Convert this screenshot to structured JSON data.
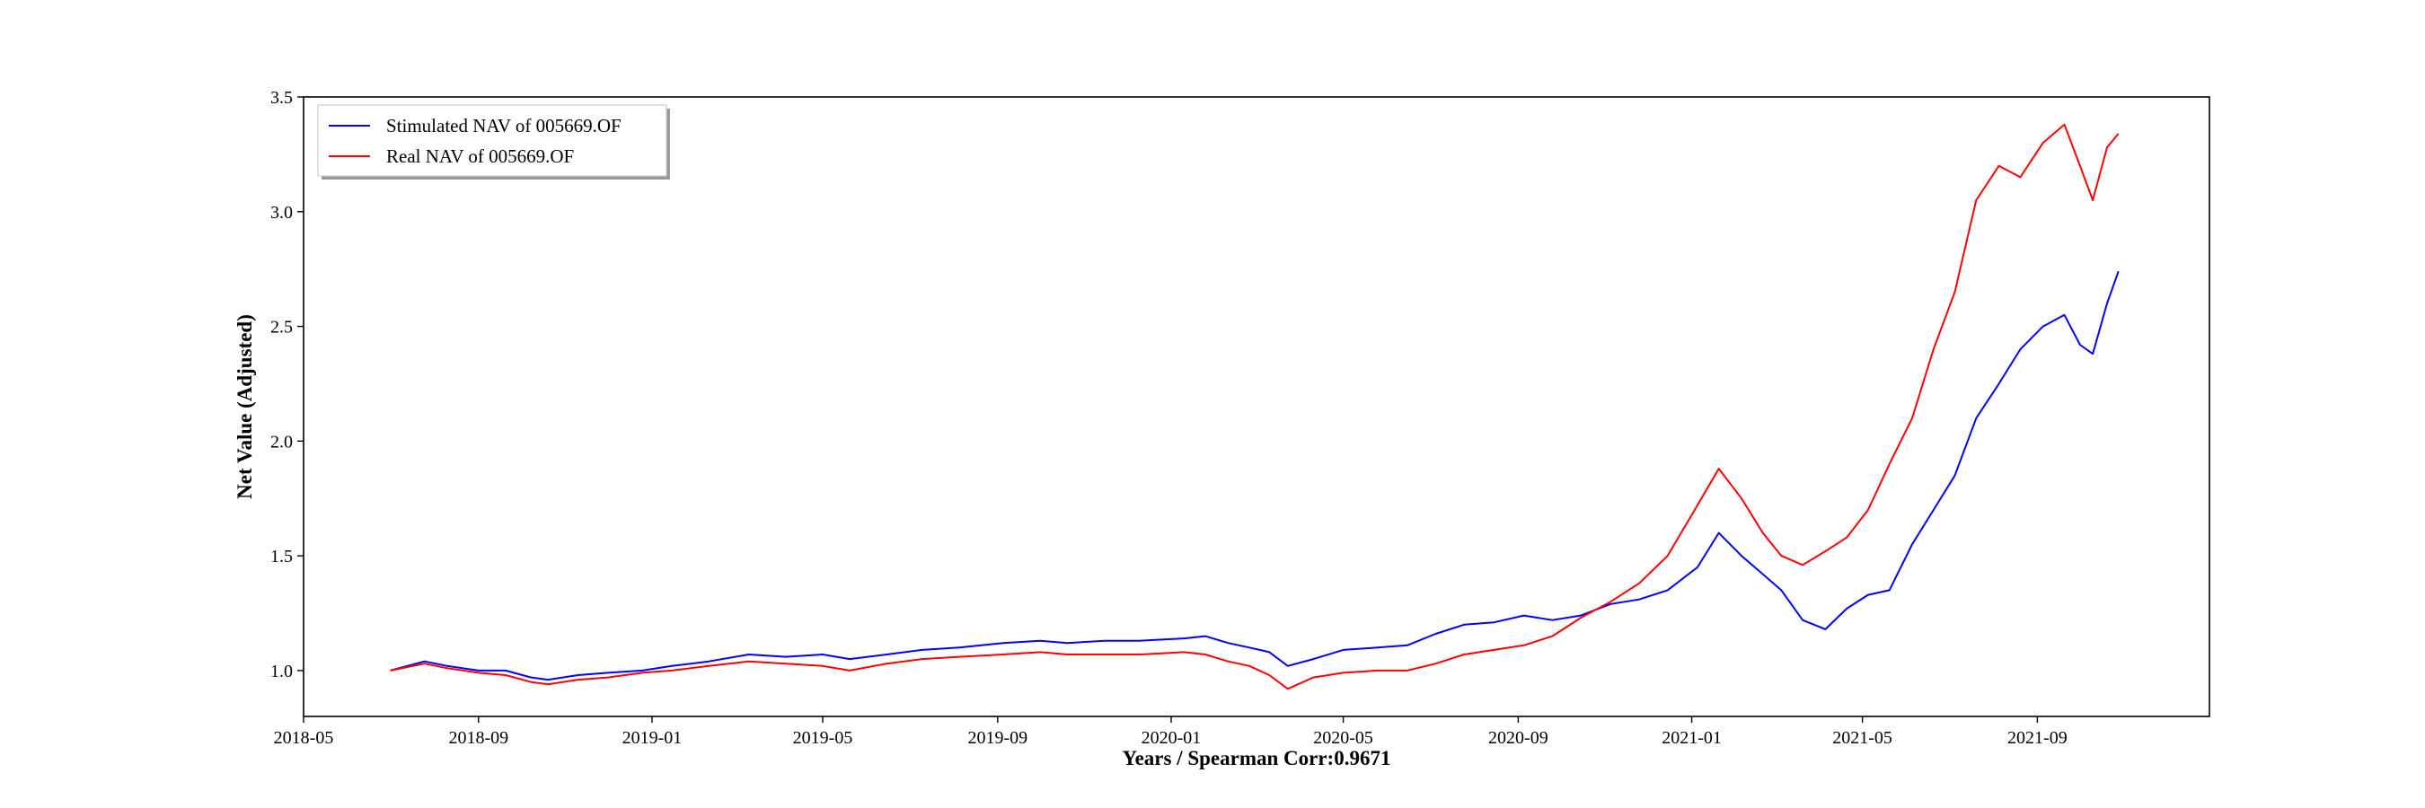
{
  "chart_data": {
    "type": "line",
    "title": "",
    "xlabel": "Years / Spearman Corr:0.9671",
    "ylabel": "Net Value (Adjusted)",
    "x_type": "date",
    "xlim": [
      "2018-05-01",
      "2021-12-31"
    ],
    "ylim": [
      0.8,
      3.5
    ],
    "x_ticks": [
      "2018-05",
      "2018-09",
      "2019-01",
      "2019-05",
      "2019-09",
      "2020-01",
      "2020-05",
      "2020-09",
      "2021-01",
      "2021-05",
      "2021-09"
    ],
    "y_ticks": [
      "1.0",
      "1.5",
      "2.0",
      "2.5",
      "3.0",
      "3.5"
    ],
    "grid": false,
    "legend_position": "top-left",
    "series": [
      {
        "name": "Stimulated NAV of 005669.OF",
        "color": "#0000ff",
        "x": [
          "2018-07-01",
          "2018-07-25",
          "2018-08-10",
          "2018-09-01",
          "2018-09-20",
          "2018-10-08",
          "2018-10-20",
          "2018-11-10",
          "2018-12-01",
          "2018-12-25",
          "2019-01-15",
          "2019-02-10",
          "2019-03-10",
          "2019-04-05",
          "2019-05-01",
          "2019-05-20",
          "2019-06-15",
          "2019-07-10",
          "2019-08-05",
          "2019-09-05",
          "2019-10-01",
          "2019-10-20",
          "2019-11-15",
          "2019-12-10",
          "2020-01-10",
          "2020-01-25",
          "2020-02-10",
          "2020-02-25",
          "2020-03-10",
          "2020-03-23",
          "2020-04-10",
          "2020-05-01",
          "2020-05-25",
          "2020-06-15",
          "2020-07-05",
          "2020-07-25",
          "2020-08-15",
          "2020-09-05",
          "2020-09-25",
          "2020-10-15",
          "2020-11-05",
          "2020-11-25",
          "2020-12-15",
          "2021-01-05",
          "2021-01-20",
          "2021-02-05",
          "2021-02-20",
          "2021-03-05",
          "2021-03-20",
          "2021-04-05",
          "2021-04-20",
          "2021-05-05",
          "2021-05-20",
          "2021-06-05",
          "2021-06-20",
          "2021-07-05",
          "2021-07-20",
          "2021-08-05",
          "2021-08-20",
          "2021-09-05",
          "2021-09-20",
          "2021-10-01",
          "2021-10-10",
          "2021-10-20",
          "2021-10-28"
        ],
        "values": [
          1.0,
          1.04,
          1.02,
          1.0,
          1.0,
          0.97,
          0.96,
          0.98,
          0.99,
          1.0,
          1.02,
          1.04,
          1.07,
          1.06,
          1.07,
          1.05,
          1.07,
          1.09,
          1.1,
          1.12,
          1.13,
          1.12,
          1.13,
          1.13,
          1.14,
          1.15,
          1.12,
          1.1,
          1.08,
          1.02,
          1.05,
          1.09,
          1.1,
          1.11,
          1.16,
          1.2,
          1.21,
          1.24,
          1.22,
          1.24,
          1.29,
          1.31,
          1.35,
          1.45,
          1.6,
          1.5,
          1.42,
          1.35,
          1.22,
          1.18,
          1.27,
          1.33,
          1.35,
          1.55,
          1.7,
          1.85,
          2.1,
          2.25,
          2.4,
          2.5,
          2.55,
          2.42,
          2.38,
          2.6,
          2.74
        ]
      },
      {
        "name": "Real NAV of 005669.OF",
        "color": "#ff0000",
        "x": [
          "2018-07-01",
          "2018-07-25",
          "2018-08-10",
          "2018-09-01",
          "2018-09-20",
          "2018-10-08",
          "2018-10-20",
          "2018-11-10",
          "2018-12-01",
          "2018-12-25",
          "2019-01-15",
          "2019-02-10",
          "2019-03-10",
          "2019-04-05",
          "2019-05-01",
          "2019-05-20",
          "2019-06-15",
          "2019-07-10",
          "2019-08-05",
          "2019-09-05",
          "2019-10-01",
          "2019-10-20",
          "2019-11-15",
          "2019-12-10",
          "2020-01-10",
          "2020-01-25",
          "2020-02-10",
          "2020-02-25",
          "2020-03-10",
          "2020-03-23",
          "2020-04-10",
          "2020-05-01",
          "2020-05-25",
          "2020-06-15",
          "2020-07-05",
          "2020-07-25",
          "2020-08-15",
          "2020-09-05",
          "2020-09-25",
          "2020-10-15",
          "2020-11-05",
          "2020-11-25",
          "2020-12-15",
          "2021-01-05",
          "2021-01-20",
          "2021-02-05",
          "2021-02-20",
          "2021-03-05",
          "2021-03-20",
          "2021-04-05",
          "2021-04-20",
          "2021-05-05",
          "2021-05-20",
          "2021-06-05",
          "2021-06-20",
          "2021-07-05",
          "2021-07-20",
          "2021-08-05",
          "2021-08-20",
          "2021-09-05",
          "2021-09-20",
          "2021-10-01",
          "2021-10-10",
          "2021-10-20",
          "2021-10-28"
        ],
        "values": [
          1.0,
          1.03,
          1.01,
          0.99,
          0.98,
          0.95,
          0.94,
          0.96,
          0.97,
          0.99,
          1.0,
          1.02,
          1.04,
          1.03,
          1.02,
          1.0,
          1.03,
          1.05,
          1.06,
          1.07,
          1.08,
          1.07,
          1.07,
          1.07,
          1.08,
          1.07,
          1.04,
          1.02,
          0.98,
          0.92,
          0.97,
          0.99,
          1.0,
          1.0,
          1.03,
          1.07,
          1.09,
          1.11,
          1.15,
          1.23,
          1.3,
          1.38,
          1.5,
          1.72,
          1.88,
          1.75,
          1.6,
          1.5,
          1.46,
          1.52,
          1.58,
          1.7,
          1.9,
          2.1,
          2.4,
          2.65,
          3.05,
          3.2,
          3.15,
          3.3,
          3.38,
          3.2,
          3.05,
          3.28,
          3.34
        ]
      }
    ]
  }
}
